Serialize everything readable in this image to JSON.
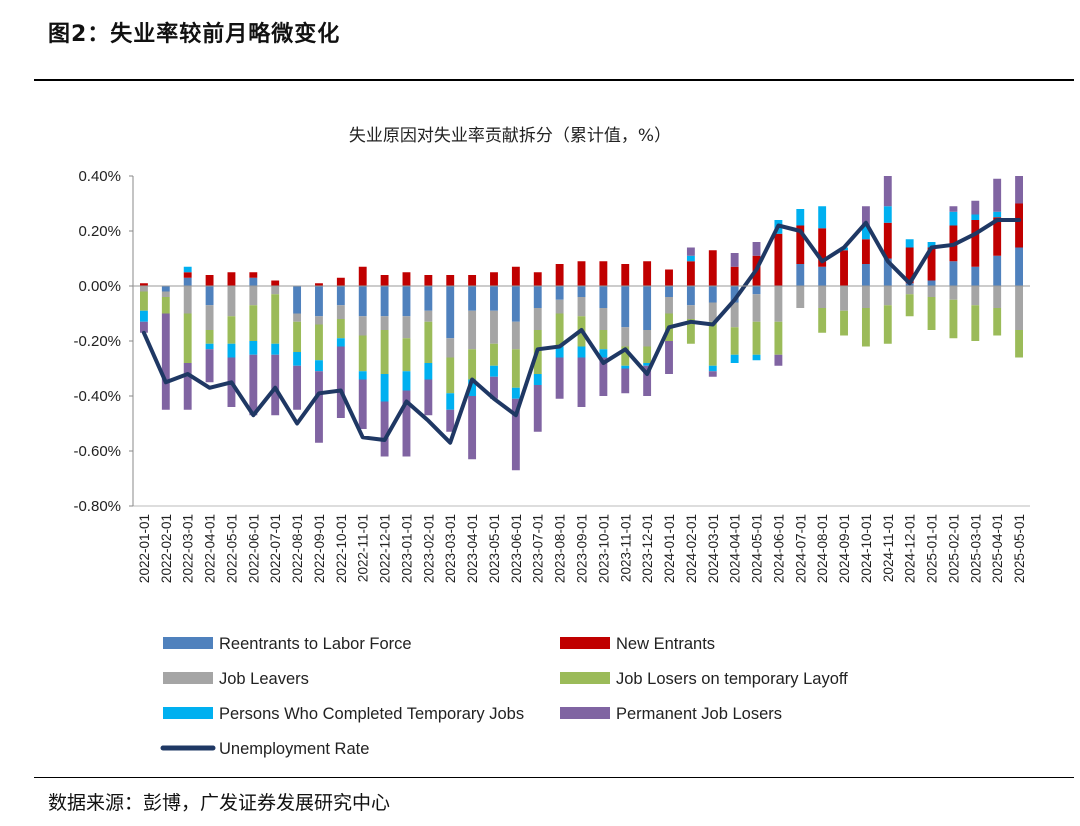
{
  "figure": {
    "title": "图2：失业率较前月略微变化",
    "source": "数据来源：彭博，广发证券发展研究中心"
  },
  "chart_data": {
    "type": "bar",
    "title": "失业原因对失业率贡献拆分（累计值，%）",
    "xlabel": "",
    "ylabel": "",
    "ylim": [
      -0.8,
      0.4
    ],
    "yticks": [
      "0.40%",
      "0.20%",
      "0.00%",
      "-0.20%",
      "-0.40%",
      "-0.60%",
      "-0.80%"
    ],
    "ytick_values": [
      0.4,
      0.2,
      0.0,
      -0.2,
      -0.4,
      -0.6,
      -0.8
    ],
    "legend_position": "bottom",
    "categories": [
      "2022-01-01",
      "2022-02-01",
      "2022-03-01",
      "2022-04-01",
      "2022-05-01",
      "2022-06-01",
      "2022-07-01",
      "2022-08-01",
      "2022-09-01",
      "2022-10-01",
      "2022-11-01",
      "2022-12-01",
      "2023-01-01",
      "2023-02-01",
      "2023-03-01",
      "2023-04-01",
      "2023-05-01",
      "2023-06-01",
      "2023-07-01",
      "2023-08-01",
      "2023-09-01",
      "2023-10-01",
      "2023-11-01",
      "2023-12-01",
      "2024-01-01",
      "2024-02-01",
      "2024-03-01",
      "2024-04-01",
      "2024-05-01",
      "2024-06-01",
      "2024-07-01",
      "2024-08-01",
      "2024-09-01",
      "2024-10-01",
      "2024-11-01",
      "2024-12-01",
      "2025-01-01",
      "2025-02-01",
      "2025-03-01",
      "2025-04-01",
      "2025-05-01"
    ],
    "x_tick_labels": [
      "2022-01-01",
      "2022-02-01",
      "2022-03-01",
      "2022-04-01",
      "2022-05-01",
      "2022-06-01",
      "2022-07-01",
      "2022-08-01",
      "2022-09-01",
      "2022-10-01",
      "2022-11-01",
      "2022-12-01",
      "2023-01-01",
      "2023-02-01",
      "2023-03-01",
      "2023-04-01",
      "2023-05-01",
      "2023-06-01",
      "2023-07-01",
      "2023-08-01",
      "2023-09-01",
      "2023-10-01",
      "2023-11-01",
      "2023-12-01",
      "2024-01-01",
      "2024-02-01",
      "2024-03-01",
      "2024-04-01",
      "2024-05-01",
      "2024-06-01",
      "2024-07-01",
      "2024-08-01",
      "2024-09-01",
      "2024-10-01",
      "2024-11-01",
      "2024-12-01",
      "2025-01-01",
      "2025-02-01",
      "2025-03-01",
      "2025-04-01",
      "2025-05-01"
    ],
    "series": [
      {
        "name": "Reentrants to Labor Force",
        "color": "#4F81BD",
        "kind": "bar",
        "values": [
          0,
          -0.02,
          0.03,
          -0.07,
          0,
          0.03,
          0,
          -0.1,
          -0.11,
          -0.07,
          -0.11,
          -0.11,
          -0.11,
          -0.09,
          -0.19,
          -0.09,
          -0.09,
          -0.13,
          -0.08,
          -0.05,
          -0.04,
          -0.08,
          -0.15,
          -0.16,
          -0.04,
          -0.07,
          -0.06,
          -0.06,
          -0.03,
          0,
          0.08,
          0.07,
          0,
          0.08,
          0.1,
          0.01,
          0.02,
          0.09,
          0.07,
          0.11,
          0.14
        ]
      },
      {
        "name": "New Entrants",
        "color": "#C00000",
        "kind": "bar",
        "values": [
          0.01,
          0,
          0.02,
          0.04,
          0.05,
          0.02,
          0.02,
          0,
          0.01,
          0.03,
          0.07,
          0.04,
          0.05,
          0.04,
          0.04,
          0.04,
          0.05,
          0.07,
          0.05,
          0.08,
          0.09,
          0.09,
          0.08,
          0.09,
          0.06,
          0.09,
          0.13,
          0.07,
          0.11,
          0.19,
          0.14,
          0.14,
          0.13,
          0.09,
          0.13,
          0.13,
          0.12,
          0.13,
          0.17,
          0.14,
          0.16
        ]
      },
      {
        "name": "Job Leavers",
        "color": "#A5A5A5",
        "kind": "bar",
        "values": [
          -0.02,
          -0.02,
          -0.1,
          -0.09,
          -0.11,
          -0.07,
          -0.03,
          -0.03,
          -0.03,
          -0.05,
          -0.07,
          -0.05,
          -0.08,
          -0.04,
          -0.07,
          -0.14,
          -0.12,
          -0.1,
          -0.08,
          -0.05,
          -0.07,
          -0.08,
          -0.07,
          -0.06,
          -0.06,
          -0.05,
          -0.07,
          -0.09,
          -0.1,
          -0.13,
          -0.08,
          -0.08,
          -0.09,
          -0.08,
          -0.07,
          -0.03,
          -0.04,
          -0.05,
          -0.07,
          -0.08,
          -0.16
        ]
      },
      {
        "name": "Job Losers on temporary Layoff",
        "color": "#9BBB59",
        "kind": "bar",
        "values": [
          -0.07,
          -0.06,
          -0.18,
          -0.05,
          -0.1,
          -0.13,
          -0.18,
          -0.11,
          -0.13,
          -0.07,
          -0.13,
          -0.16,
          -0.12,
          -0.15,
          -0.13,
          -0.11,
          -0.08,
          -0.14,
          -0.16,
          -0.12,
          -0.11,
          -0.07,
          -0.07,
          -0.06,
          -0.1,
          -0.09,
          -0.16,
          -0.1,
          -0.12,
          -0.12,
          0,
          -0.09,
          -0.09,
          -0.14,
          -0.14,
          -0.08,
          -0.12,
          -0.14,
          -0.13,
          -0.1,
          -0.1
        ]
      },
      {
        "name": "Persons Who Completed Temporary Jobs",
        "color": "#00B0F0",
        "kind": "bar",
        "values": [
          -0.04,
          0,
          0.02,
          -0.02,
          -0.05,
          -0.05,
          -0.04,
          -0.05,
          -0.04,
          -0.03,
          -0.03,
          -0.1,
          -0.07,
          -0.06,
          -0.06,
          -0.06,
          -0.04,
          -0.04,
          -0.04,
          -0.04,
          -0.04,
          -0.03,
          -0.01,
          -0.01,
          0,
          0.02,
          -0.02,
          -0.03,
          -0.02,
          0.05,
          0.06,
          0.08,
          0.01,
          0.05,
          0.06,
          0.03,
          0.02,
          0.05,
          0.02,
          0.02,
          0
        ]
      },
      {
        "name": "Permanent Job Losers",
        "color": "#8064A2",
        "kind": "bar",
        "values": [
          -0.04,
          -0.35,
          -0.17,
          -0.12,
          -0.18,
          -0.22,
          -0.22,
          -0.16,
          -0.26,
          -0.26,
          -0.18,
          -0.2,
          -0.24,
          -0.13,
          -0.08,
          -0.23,
          -0.08,
          -0.26,
          -0.17,
          -0.15,
          -0.18,
          -0.14,
          -0.09,
          -0.11,
          -0.12,
          0.03,
          -0.02,
          0.05,
          0.05,
          -0.04,
          0,
          0,
          0,
          0.07,
          0.11,
          0,
          0,
          0.02,
          0.05,
          0.12,
          0.1
        ]
      },
      {
        "name": "Unemployment Rate",
        "color": "#1F3864",
        "kind": "line",
        "values": [
          -0.17,
          -0.35,
          -0.32,
          -0.37,
          -0.35,
          -0.47,
          -0.37,
          -0.5,
          -0.39,
          -0.38,
          -0.55,
          -0.56,
          -0.42,
          -0.49,
          -0.57,
          -0.34,
          -0.41,
          -0.47,
          -0.23,
          -0.22,
          -0.16,
          -0.28,
          -0.23,
          -0.32,
          -0.15,
          -0.13,
          -0.14,
          -0.05,
          0.06,
          0.22,
          0.2,
          0.09,
          0.14,
          0.23,
          0.09,
          0.01,
          0.14,
          0.15,
          0.19,
          0.24,
          0.24
        ]
      }
    ]
  }
}
